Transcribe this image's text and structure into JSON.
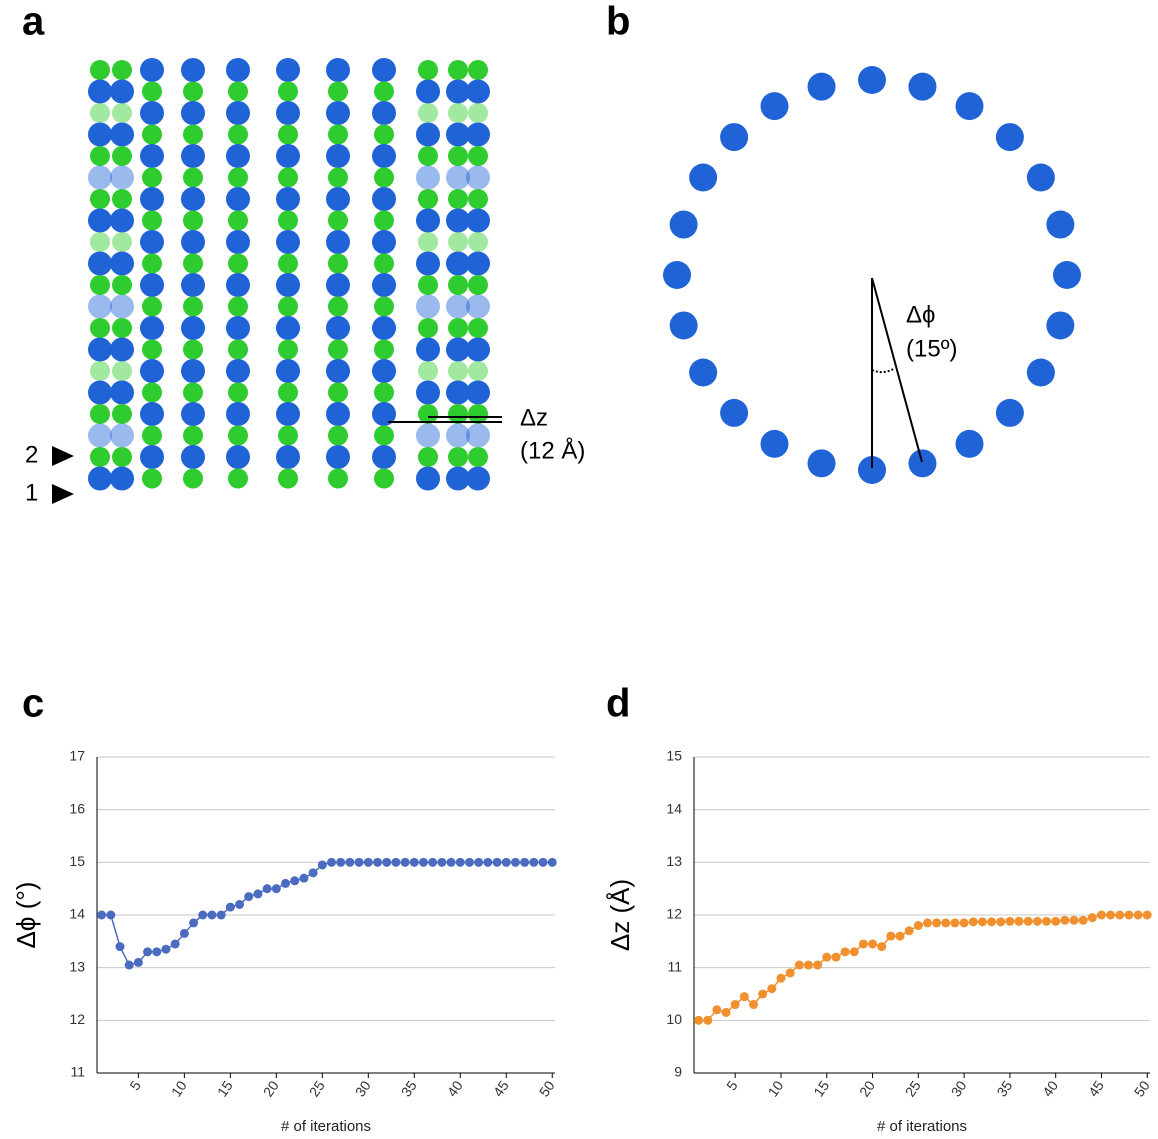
{
  "panel_a": {
    "label": "a",
    "dz": "Δz",
    "dz_value": "(12 Å)",
    "row_2": "2",
    "row_1": "1"
  },
  "panel_b": {
    "label": "b",
    "dphi": "Δϕ",
    "dphi_value": "(15º)"
  },
  "chart_data": [
    {
      "type": "line",
      "panel_label": "c",
      "xlabel": "# of iterations",
      "ylabel": "Δϕ (°)",
      "color": "#4a6bbf",
      "label_color": "#2a6db5",
      "x": [
        1,
        2,
        3,
        4,
        5,
        6,
        7,
        8,
        9,
        10,
        11,
        12,
        13,
        14,
        15,
        16,
        17,
        18,
        19,
        20,
        21,
        22,
        23,
        24,
        25,
        26,
        27,
        28,
        29,
        30,
        31,
        32,
        33,
        34,
        35,
        36,
        37,
        38,
        39,
        40,
        41,
        42,
        43,
        44,
        45,
        46,
        47,
        48,
        49,
        50
      ],
      "values": [
        14,
        14,
        13.4,
        13.05,
        13.1,
        13.3,
        13.3,
        13.35,
        13.45,
        13.65,
        13.85,
        14,
        14,
        14,
        14.15,
        14.2,
        14.35,
        14.4,
        14.5,
        14.5,
        14.6,
        14.65,
        14.7,
        14.8,
        14.95,
        15,
        15,
        15,
        15,
        15,
        15,
        15,
        15,
        15,
        15,
        15,
        15,
        15,
        15,
        15,
        15,
        15,
        15,
        15,
        15,
        15,
        15,
        15,
        15,
        15
      ],
      "xlim": [
        0.5,
        50.3
      ],
      "xticks": [
        5,
        10,
        15,
        20,
        25,
        30,
        35,
        40,
        45,
        50
      ],
      "ylim": [
        11,
        17
      ],
      "yticks": [
        11,
        12,
        13,
        14,
        15,
        16,
        17
      ],
      "grid": true
    },
    {
      "type": "line",
      "panel_label": "d",
      "xlabel": "# of iterations",
      "ylabel": "Δz (Å)",
      "color": "#f0902e",
      "label_color": "#e8891f",
      "x": [
        1,
        2,
        3,
        4,
        5,
        6,
        7,
        8,
        9,
        10,
        11,
        12,
        13,
        14,
        15,
        16,
        17,
        18,
        19,
        20,
        21,
        22,
        23,
        24,
        25,
        26,
        27,
        28,
        29,
        30,
        31,
        32,
        33,
        34,
        35,
        36,
        37,
        38,
        39,
        40,
        41,
        42,
        43,
        44,
        45,
        46,
        47,
        48,
        49,
        50
      ],
      "values": [
        10,
        10,
        10.2,
        10.15,
        10.3,
        10.45,
        10.3,
        10.5,
        10.6,
        10.8,
        10.9,
        11.05,
        11.05,
        11.05,
        11.2,
        11.2,
        11.3,
        11.3,
        11.45,
        11.45,
        11.4,
        11.6,
        11.6,
        11.7,
        11.8,
        11.85,
        11.85,
        11.85,
        11.85,
        11.85,
        11.87,
        11.87,
        11.87,
        11.87,
        11.88,
        11.88,
        11.88,
        11.88,
        11.88,
        11.88,
        11.9,
        11.9,
        11.9,
        11.95,
        12,
        12,
        12,
        12,
        12,
        12
      ],
      "xlim": [
        0.5,
        50.3
      ],
      "xticks": [
        5,
        10,
        15,
        20,
        25,
        30,
        35,
        40,
        45,
        50
      ],
      "ylim": [
        9,
        15
      ],
      "yticks": [
        9,
        10,
        11,
        12,
        13,
        14,
        15
      ],
      "grid": true
    }
  ]
}
